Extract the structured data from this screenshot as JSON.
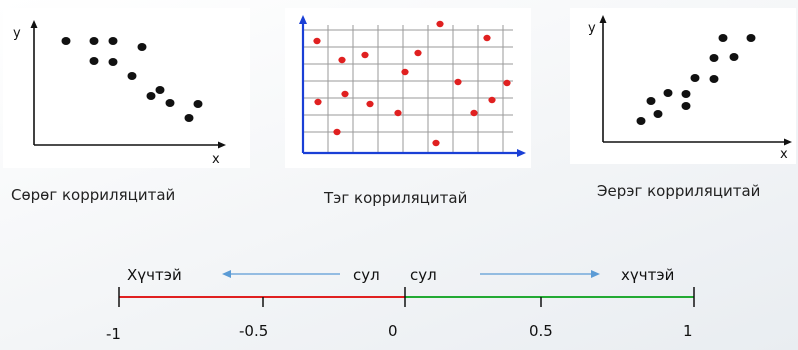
{
  "panels": {
    "negative": {
      "axis_y": "y",
      "axis_x": "x",
      "caption": "Сөрөг корриляцитай",
      "dot_color": "#111111",
      "points": [
        [
          66,
          41
        ],
        [
          94,
          41
        ],
        [
          113,
          41
        ],
        [
          142,
          47
        ],
        [
          94,
          61
        ],
        [
          113,
          62
        ],
        [
          132,
          76
        ],
        [
          151,
          96
        ],
        [
          160,
          90
        ],
        [
          170,
          103
        ],
        [
          198,
          104
        ],
        [
          189,
          118
        ]
      ]
    },
    "zero": {
      "caption": "Тэг корриляцитай",
      "dot_color": "#e02020",
      "axis_color": "#1a3fd6",
      "points": [
        [
          317,
          41
        ],
        [
          440,
          24
        ],
        [
          487,
          38
        ],
        [
          365,
          55
        ],
        [
          418,
          53
        ],
        [
          342,
          60
        ],
        [
          405,
          72
        ],
        [
          458,
          82
        ],
        [
          507,
          83
        ],
        [
          318,
          102
        ],
        [
          345,
          94
        ],
        [
          370,
          104
        ],
        [
          398,
          113
        ],
        [
          474,
          113
        ],
        [
          492,
          100
        ],
        [
          337,
          132
        ],
        [
          436,
          143
        ]
      ]
    },
    "positive": {
      "axis_y": "y",
      "axis_x": "x",
      "caption": "Эерэг корриляцитай",
      "dot_color": "#111111",
      "points": [
        [
          641,
          121
        ],
        [
          658,
          114
        ],
        [
          651,
          101
        ],
        [
          668,
          93
        ],
        [
          686,
          94
        ],
        [
          686,
          106
        ],
        [
          695,
          78
        ],
        [
          714,
          79
        ],
        [
          714,
          58
        ],
        [
          734,
          57
        ],
        [
          723,
          38
        ],
        [
          751,
          38
        ]
      ]
    }
  },
  "scale": {
    "ticks": [
      "-1",
      "-0.5",
      "0",
      "0.5",
      "1"
    ],
    "label_left_strong": "Хүчтэй",
    "label_left_weak": "сул",
    "label_right_weak": "сул",
    "label_right_strong": "хүчтэй",
    "negative_color": "#e02020",
    "positive_color": "#22aa33",
    "arrow_color": "#5b9bd5"
  }
}
